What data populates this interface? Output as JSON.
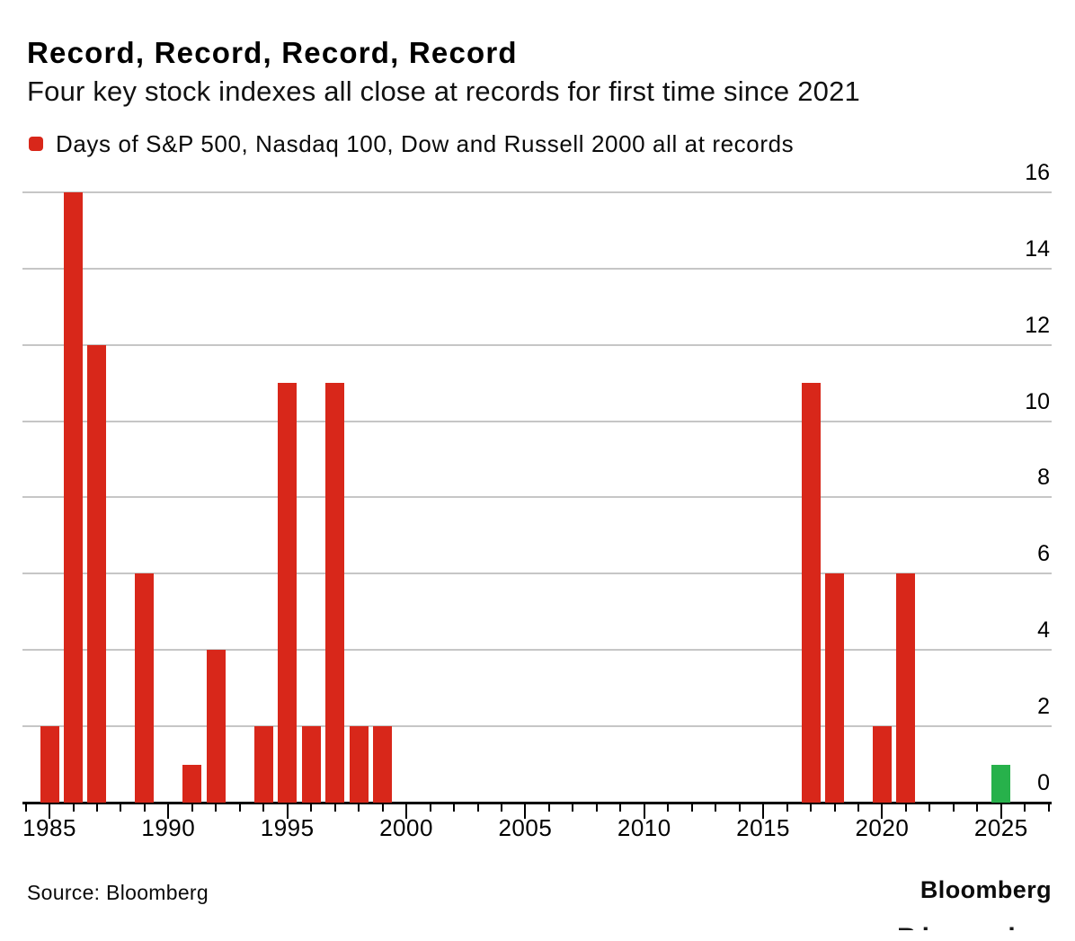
{
  "header": {
    "title": "Record, Record, Record, Record",
    "subtitle": "Four key stock indexes all close at records for first time since 2021"
  },
  "legend": {
    "label": "Days of S&P 500, Nasdaq 100, Dow and Russell 2000 all at records",
    "swatch_color": "#d8271a"
  },
  "chart_data": {
    "type": "bar",
    "title": "Record, Record, Record, Record",
    "subtitle": "Four key stock indexes all close at records for first time since 2021",
    "series_name": "Days of S&P 500, Nasdaq 100, Dow and Russell 2000 all at records",
    "bars": [
      {
        "year": 1985,
        "value": 2
      },
      {
        "year": 1986,
        "value": 16
      },
      {
        "year": 1987,
        "value": 12
      },
      {
        "year": 1989,
        "value": 6
      },
      {
        "year": 1991,
        "value": 1
      },
      {
        "year": 1992,
        "value": 4
      },
      {
        "year": 1994,
        "value": 2
      },
      {
        "year": 1995,
        "value": 11
      },
      {
        "year": 1996,
        "value": 2
      },
      {
        "year": 1997,
        "value": 11
      },
      {
        "year": 1998,
        "value": 2
      },
      {
        "year": 1999,
        "value": 2
      },
      {
        "year": 2017,
        "value": 11
      },
      {
        "year": 2018,
        "value": 6
      },
      {
        "year": 2020,
        "value": 2
      },
      {
        "year": 2021,
        "value": 6
      },
      {
        "year": 2025,
        "value": 1,
        "color": "#27b14b"
      }
    ],
    "default_bar_color": "#d8271a",
    "highlight_bar_color": "#27b14b",
    "xlabel": "",
    "ylabel": "",
    "ylim": [
      0,
      16
    ],
    "yticks": [
      0,
      2,
      4,
      6,
      8,
      10,
      12,
      14,
      16
    ],
    "ytick_side": "right",
    "xticks_labeled": [
      1985,
      1990,
      1995,
      2000,
      2005,
      2010,
      2015,
      2020,
      2025
    ],
    "xtick_minor_range": [
      1984,
      2027
    ],
    "grid": "horizontal"
  },
  "footer": {
    "source": "Source: Bloomberg",
    "brand": "Bloomberg"
  }
}
